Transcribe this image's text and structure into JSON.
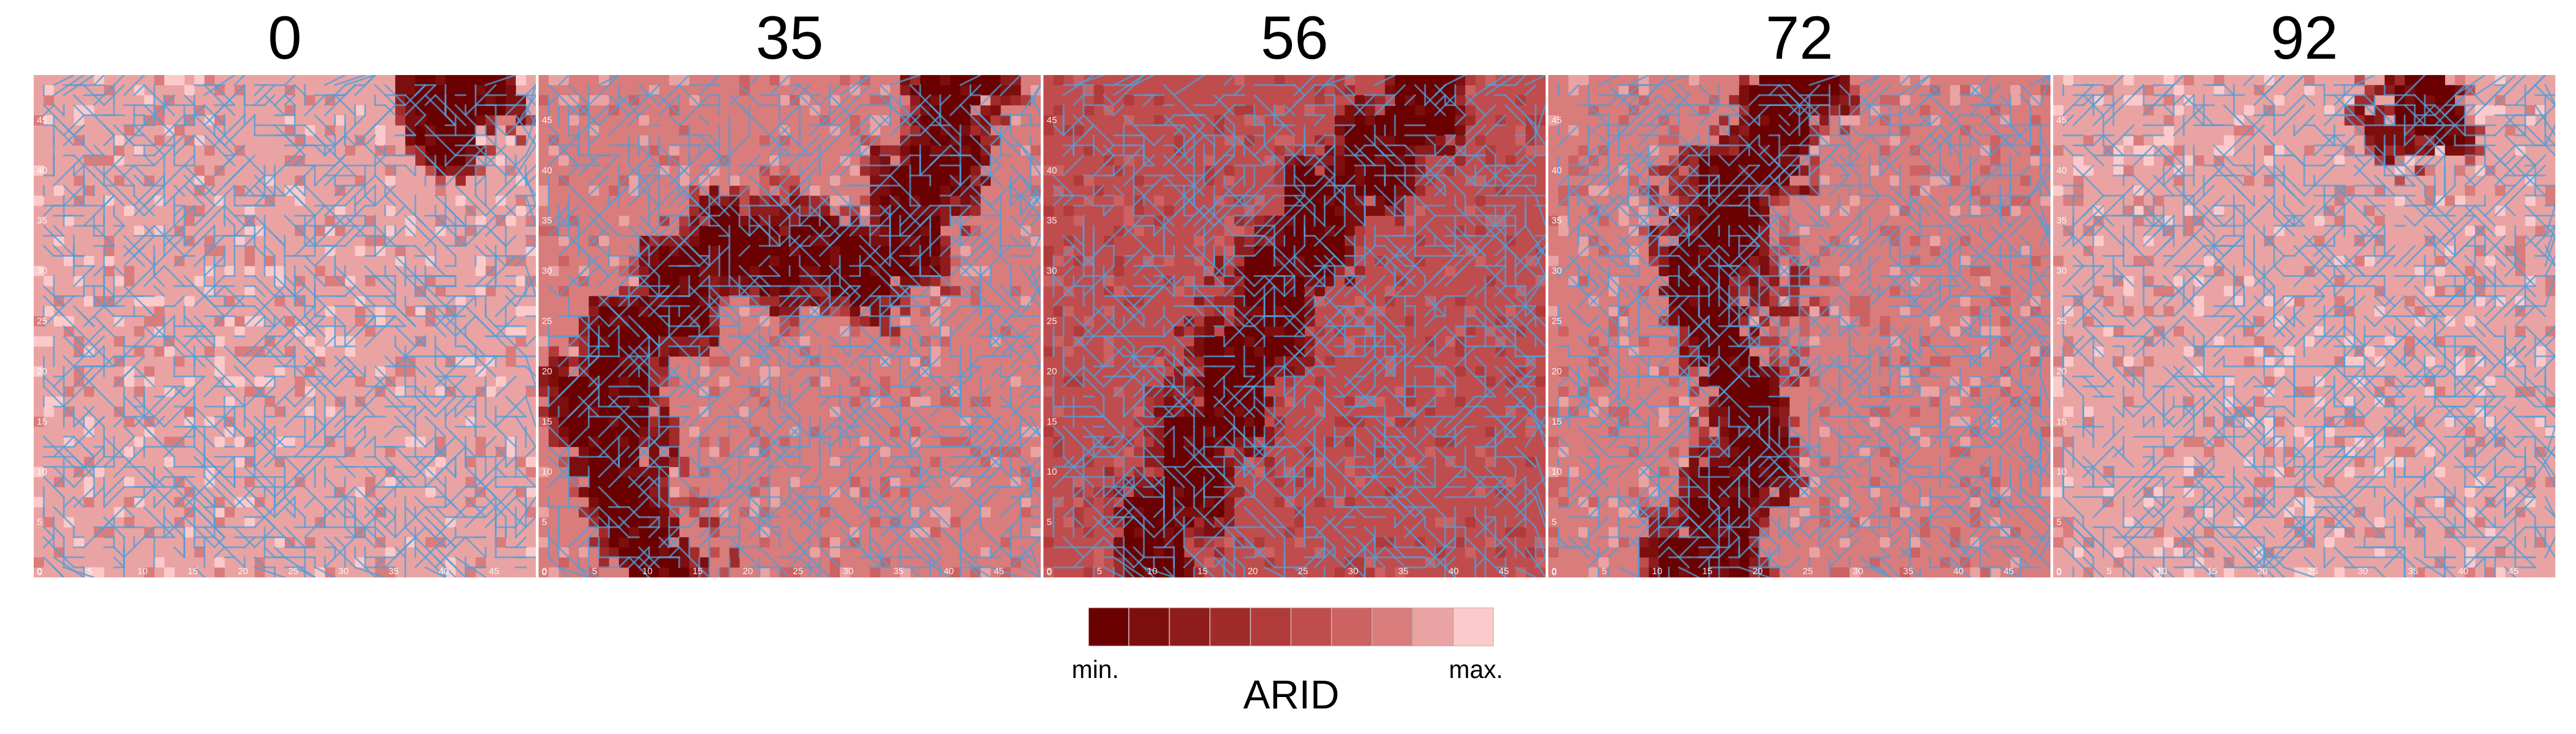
{
  "chart_data": [
    {
      "type": "heatmap",
      "title": "0",
      "grid_size": 50,
      "xlim": [
        0,
        49
      ],
      "ylim": [
        0,
        49
      ],
      "x_ticks": [
        "0",
        "5",
        "10",
        "15",
        "20",
        "25",
        "30",
        "35",
        "40",
        "45"
      ],
      "y_ticks": [
        "0",
        "5",
        "10",
        "15",
        "20",
        "25",
        "30",
        "35",
        "40",
        "45"
      ],
      "low_region": [
        [
          41,
          48
        ],
        [
          43,
          47
        ],
        [
          42,
          46
        ],
        [
          41,
          45
        ]
      ],
      "medium_region": [],
      "base_level": 8
    },
    {
      "type": "heatmap",
      "title": "35",
      "grid_size": 50,
      "xlim": [
        0,
        49
      ],
      "ylim": [
        0,
        49
      ],
      "x_ticks": [
        "0",
        "5",
        "10",
        "15",
        "20",
        "25",
        "30",
        "35",
        "40",
        "45"
      ],
      "y_ticks": [
        "0",
        "5",
        "10",
        "15",
        "20",
        "25",
        "30",
        "35",
        "40",
        "45"
      ],
      "low_region": [
        [
          13,
          0
        ],
        [
          11,
          3
        ],
        [
          9,
          7
        ],
        [
          8,
          11
        ],
        [
          7,
          15
        ],
        [
          6,
          19
        ],
        [
          8,
          22
        ],
        [
          11,
          25
        ],
        [
          14,
          28
        ],
        [
          16,
          31
        ],
        [
          19,
          33
        ],
        [
          22,
          33
        ],
        [
          25,
          32
        ],
        [
          28,
          31
        ],
        [
          31,
          32
        ],
        [
          34,
          31
        ],
        [
          36,
          33
        ],
        [
          38,
          37
        ],
        [
          39,
          41
        ],
        [
          41,
          45
        ],
        [
          42,
          49
        ]
      ],
      "medium_region": [
        [
          20,
          36
        ],
        [
          15,
          32
        ],
        [
          12,
          29
        ],
        [
          24,
          37
        ]
      ],
      "base_level": 7
    },
    {
      "type": "heatmap",
      "title": "56",
      "grid_size": 50,
      "xlim": [
        0,
        49
      ],
      "ylim": [
        0,
        49
      ],
      "x_ticks": [
        "0",
        "5",
        "10",
        "15",
        "20",
        "25",
        "30",
        "35",
        "40",
        "45"
      ],
      "y_ticks": [
        "0",
        "5",
        "10",
        "15",
        "20",
        "25",
        "30",
        "35",
        "40",
        "45"
      ],
      "low_region": [
        [
          12,
          0
        ],
        [
          11,
          3
        ],
        [
          12,
          6
        ],
        [
          14,
          9
        ],
        [
          16,
          13
        ],
        [
          18,
          17
        ],
        [
          20,
          21
        ],
        [
          22,
          25
        ],
        [
          24,
          29
        ],
        [
          26,
          33
        ],
        [
          28,
          37
        ],
        [
          31,
          40
        ],
        [
          34,
          42
        ],
        [
          36,
          45
        ],
        [
          38,
          49
        ]
      ],
      "medium_region": [
        [
          11,
          8
        ],
        [
          12,
          12
        ],
        [
          13,
          16
        ],
        [
          14,
          20
        ],
        [
          16,
          24
        ],
        [
          18,
          28
        ],
        [
          21,
          32
        ],
        [
          24,
          35
        ],
        [
          27,
          38
        ],
        [
          30,
          41
        ]
      ],
      "base_level": 5
    },
    {
      "type": "heatmap",
      "title": "72",
      "grid_size": 50,
      "xlim": [
        0,
        49
      ],
      "ylim": [
        0,
        49
      ],
      "x_ticks": [
        "0",
        "5",
        "10",
        "15",
        "20",
        "25",
        "30",
        "35",
        "40",
        "45"
      ],
      "y_ticks": [
        "0",
        "5",
        "10",
        "15",
        "20",
        "25",
        "30",
        "35",
        "40",
        "45"
      ],
      "low_region": [
        [
          16,
          0
        ],
        [
          15,
          3
        ],
        [
          17,
          6
        ],
        [
          19,
          9
        ],
        [
          20,
          12
        ],
        [
          20,
          16
        ],
        [
          19,
          20
        ],
        [
          17,
          24
        ],
        [
          16,
          28
        ],
        [
          16,
          32
        ],
        [
          17,
          36
        ],
        [
          19,
          39
        ],
        [
          21,
          42
        ],
        [
          23,
          45
        ],
        [
          25,
          49
        ]
      ],
      "medium_region": [
        [
          13,
          38
        ],
        [
          14,
          40
        ],
        [
          24,
          28
        ]
      ],
      "base_level": 7
    },
    {
      "type": "heatmap",
      "title": "92",
      "grid_size": 50,
      "xlim": [
        0,
        49
      ],
      "ylim": [
        0,
        49
      ],
      "x_ticks": [
        "0",
        "5",
        "10",
        "15",
        "20",
        "25",
        "30",
        "35",
        "40",
        "45"
      ],
      "y_ticks": [
        "0",
        "5",
        "10",
        "15",
        "20",
        "25",
        "30",
        "35",
        "40",
        "45"
      ],
      "low_region": [
        [
          36,
          47
        ],
        [
          37,
          46
        ]
      ],
      "medium_region": [],
      "base_level": 8
    }
  ],
  "legend": {
    "title": "ARID",
    "min_label": "min.",
    "max_label": "max.",
    "colors": [
      "#6b0000",
      "#7d0e0e",
      "#8f1c1c",
      "#a12b2b",
      "#b13b3b",
      "#c04d4d",
      "#cc6262",
      "#d97c7c",
      "#eaa3a3",
      "#fccaca"
    ]
  },
  "network_color": "#4f9fd9"
}
